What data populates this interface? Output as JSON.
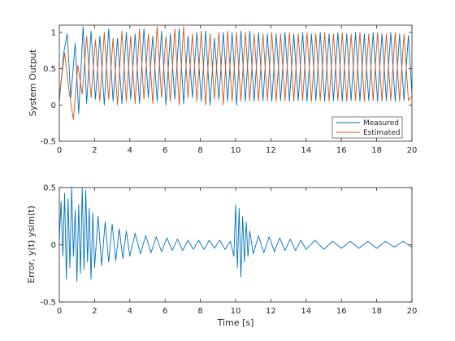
{
  "chart_data": [
    {
      "type": "line",
      "ylabel": "System Output",
      "xlim": [
        0,
        20
      ],
      "ylim": [
        -0.5,
        1.1
      ],
      "xticks": [
        "0",
        "2",
        "4",
        "6",
        "8",
        "10",
        "12",
        "14",
        "16",
        "18",
        "20"
      ],
      "yticks": [
        "-0.5",
        "0",
        "0.5",
        "1"
      ],
      "ytick_values": [
        -0.5,
        0,
        0.5,
        1
      ],
      "legend_position": "bottom-right",
      "series": [
        {
          "name": "Measured",
          "color": "#0072BD",
          "x": [
            0,
            0.25,
            0.45,
            0.65,
            0.9,
            1.1,
            1.35,
            1.55,
            1.8,
            2.05,
            2.3,
            2.55,
            2.8,
            3.05,
            3.3,
            3.55,
            3.8,
            4.05,
            4.3,
            4.55,
            4.8,
            5.05,
            5.3,
            5.55,
            5.8,
            6.05,
            6.3,
            6.55,
            6.8,
            7.05,
            7.3,
            7.55,
            7.8,
            8.05,
            8.3,
            8.55,
            8.8,
            9.05,
            9.3,
            9.55,
            9.8,
            10.05,
            10.3,
            10.55,
            10.8,
            11.05,
            11.3,
            11.55,
            11.8,
            12.05,
            12.3,
            12.55,
            12.8,
            13.05,
            13.3,
            13.55,
            13.8,
            14.05,
            14.3,
            14.55,
            14.8,
            15.05,
            15.3,
            15.55,
            15.8,
            16.05,
            16.3,
            16.55,
            16.8,
            17.05,
            17.3,
            17.55,
            17.8,
            18.05,
            18.3,
            18.55,
            18.8,
            19.05,
            19.3,
            19.55,
            19.8,
            20
          ],
          "values": [
            0.05,
            0.72,
            0.98,
            0.1,
            0.85,
            -0.12,
            1.08,
            0.02,
            1.02,
            0.08,
            0.95,
            0.0,
            1.05,
            0.05,
            0.92,
            0.02,
            1.0,
            0.08,
            0.98,
            0.02,
            1.05,
            0.1,
            0.95,
            0.05,
            1.02,
            0.0,
            0.98,
            0.08,
            1.05,
            0.02,
            0.95,
            0.1,
            1.0,
            0.05,
            1.02,
            0.0,
            0.92,
            0.08,
            1.0,
            0.05,
            1.0,
            0.0,
            1.02,
            0.05,
            1.02,
            0.05,
            1.0,
            0.06,
            0.98,
            0.05,
            0.98,
            0.06,
            1.0,
            0.05,
            0.98,
            0.06,
            1.0,
            0.05,
            0.98,
            0.06,
            1.0,
            0.05,
            0.98,
            0.06,
            1.0,
            0.05,
            0.98,
            0.06,
            1.0,
            0.05,
            0.98,
            0.06,
            1.0,
            0.05,
            0.98,
            0.06,
            1.0,
            0.05,
            0.98,
            0.06,
            0.96,
            0.15
          ]
        },
        {
          "name": "Estimated",
          "color": "#D95319",
          "x": [
            0,
            0.3,
            0.55,
            0.8,
            1.05,
            1.3,
            1.55,
            1.8,
            2.05,
            2.3,
            2.55,
            2.8,
            3.05,
            3.3,
            3.55,
            3.8,
            4.05,
            4.3,
            4.55,
            4.8,
            5.05,
            5.3,
            5.55,
            5.8,
            6.05,
            6.3,
            6.55,
            6.8,
            7.05,
            7.3,
            7.55,
            7.8,
            8.05,
            8.3,
            8.55,
            8.8,
            9.05,
            9.3,
            9.55,
            9.8,
            10.05,
            10.3,
            10.55,
            10.8,
            11.05,
            11.3,
            11.55,
            11.8,
            12.05,
            12.3,
            12.55,
            12.8,
            13.05,
            13.3,
            13.55,
            13.8,
            14.05,
            14.3,
            14.55,
            14.8,
            15.05,
            15.3,
            15.55,
            15.8,
            16.05,
            16.3,
            16.55,
            16.8,
            17.05,
            17.3,
            17.55,
            17.8,
            18.05,
            18.3,
            18.55,
            18.8,
            19.05,
            19.3,
            19.55,
            19.8,
            20
          ],
          "values": [
            0.12,
            0.72,
            0.2,
            -0.2,
            0.55,
            0.15,
            0.95,
            0.1,
            0.9,
            0.05,
            1.0,
            0.08,
            0.92,
            0.0,
            1.02,
            0.05,
            0.95,
            0.02,
            1.05,
            0.08,
            0.98,
            0.02,
            1.08,
            0.1,
            0.95,
            0.05,
            1.05,
            0.0,
            1.08,
            0.1,
            0.98,
            0.05,
            1.02,
            0.0,
            0.98,
            0.08,
            1.0,
            0.0,
            1.02,
            0.05,
            1.0,
            0.05,
            1.0,
            0.06,
            0.98,
            0.05,
            0.98,
            0.06,
            1.0,
            0.05,
            0.98,
            0.06,
            1.0,
            0.05,
            0.98,
            0.06,
            1.0,
            0.05,
            0.98,
            0.06,
            1.0,
            0.05,
            0.98,
            0.06,
            1.0,
            0.05,
            0.98,
            0.06,
            1.0,
            0.05,
            0.98,
            0.06,
            1.0,
            0.05,
            0.98,
            0.06,
            1.0,
            0.05,
            0.98,
            0.06,
            0.12
          ]
        }
      ]
    },
    {
      "type": "line",
      "xlabel": "Time [s]",
      "ylabel": "Error, y(t) ysim(t)",
      "xlim": [
        0,
        20
      ],
      "ylim": [
        -0.5,
        0.5
      ],
      "xticks": [
        "0",
        "2",
        "4",
        "6",
        "8",
        "10",
        "12",
        "14",
        "16",
        "18",
        "20"
      ],
      "yticks": [
        "-0.5",
        "0",
        "0.5"
      ],
      "ytick_values": [
        -0.5,
        0,
        0.5
      ],
      "series": [
        {
          "color": "#0072BD",
          "x": [
            0,
            0.1,
            0.2,
            0.3,
            0.4,
            0.5,
            0.6,
            0.7,
            0.8,
            0.9,
            1.0,
            1.1,
            1.2,
            1.3,
            1.4,
            1.5,
            1.6,
            1.7,
            1.8,
            1.9,
            2.0,
            2.2,
            2.4,
            2.6,
            2.8,
            3.0,
            3.2,
            3.4,
            3.6,
            3.8,
            4.0,
            4.3,
            4.6,
            4.9,
            5.2,
            5.5,
            5.8,
            6.1,
            6.4,
            6.7,
            7.0,
            7.3,
            7.6,
            7.9,
            8.2,
            8.5,
            8.8,
            9.1,
            9.4,
            9.7,
            9.9,
            10.0,
            10.1,
            10.2,
            10.3,
            10.4,
            10.5,
            10.6,
            10.7,
            10.8,
            11.0,
            11.3,
            11.6,
            11.9,
            12.2,
            12.5,
            12.8,
            13.1,
            13.4,
            13.7,
            14.0,
            14.5,
            15.0,
            15.5,
            16.0,
            16.5,
            17.0,
            17.5,
            18.0,
            18.5,
            19.0,
            19.5,
            20.0
          ],
          "values": [
            0.05,
            0.38,
            -0.1,
            0.45,
            -0.3,
            0.4,
            -0.2,
            0.5,
            -0.1,
            0.3,
            -0.32,
            0.35,
            -0.25,
            0.5,
            -0.22,
            0.48,
            -0.15,
            0.32,
            -0.3,
            0.28,
            -0.2,
            0.25,
            -0.18,
            0.2,
            -0.15,
            0.18,
            -0.14,
            0.14,
            -0.12,
            0.12,
            -0.1,
            0.1,
            -0.08,
            0.08,
            -0.07,
            0.07,
            -0.06,
            0.06,
            -0.05,
            0.05,
            -0.05,
            0.04,
            -0.04,
            0.04,
            -0.04,
            0.04,
            -0.03,
            0.04,
            -0.04,
            0.03,
            -0.1,
            0.35,
            -0.2,
            0.32,
            -0.28,
            0.25,
            -0.15,
            0.2,
            -0.1,
            0.12,
            -0.08,
            0.08,
            -0.07,
            0.07,
            -0.06,
            0.06,
            -0.05,
            0.05,
            -0.05,
            0.04,
            -0.04,
            0.04,
            -0.04,
            0.03,
            -0.03,
            0.03,
            -0.03,
            0.03,
            -0.03,
            0.03,
            -0.02,
            0.03,
            -0.02
          ]
        }
      ]
    }
  ]
}
